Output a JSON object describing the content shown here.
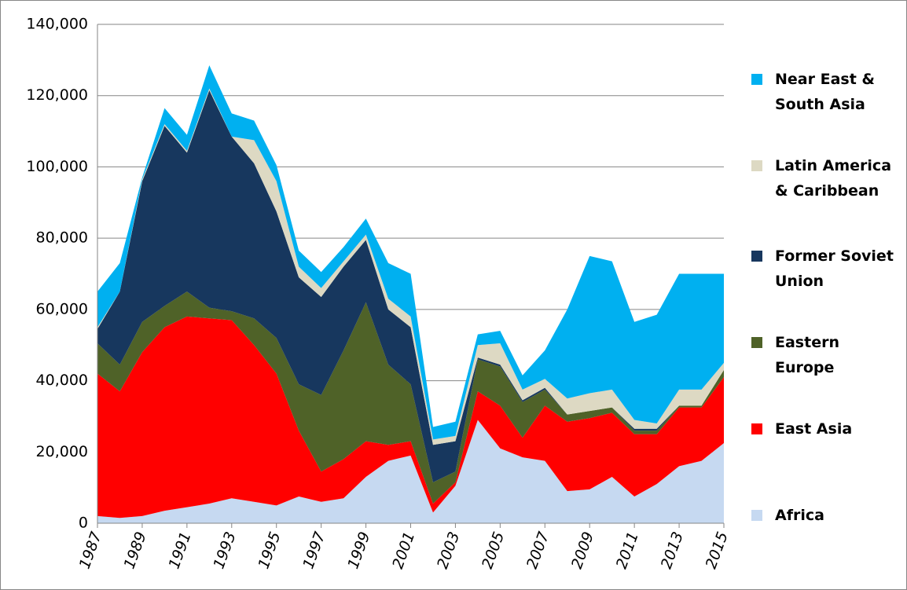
{
  "chart_data": {
    "type": "stacked-area",
    "x": [
      1987,
      1988,
      1989,
      1990,
      1991,
      1992,
      1993,
      1994,
      1995,
      1996,
      1997,
      1998,
      1999,
      2000,
      2001,
      2002,
      2003,
      2004,
      2005,
      2006,
      2007,
      2008,
      2009,
      2010,
      2011,
      2012,
      2013,
      2014,
      2015
    ],
    "xlim": [
      1987,
      2015
    ],
    "xticks": [
      1987,
      1989,
      1991,
      1993,
      1995,
      1997,
      1999,
      2001,
      2003,
      2005,
      2007,
      2009,
      2011,
      2013,
      2015
    ],
    "ylim": [
      0,
      140000
    ],
    "yticks": [
      0,
      {
        "value": 20000,
        "label": "20,000"
      },
      {
        "value": 40000,
        "label": "40,000"
      },
      {
        "value": 60000,
        "label": "60,000"
      },
      {
        "value": 80000,
        "label": "80,000"
      },
      {
        "value": 100000,
        "label": "100,000"
      },
      {
        "value": 120000,
        "label": "120,000"
      },
      {
        "value": 140000,
        "label": "140,000"
      }
    ],
    "grid": true,
    "legend": "right",
    "series": [
      {
        "name": "Africa",
        "color": "#c6d9f1",
        "values": [
          2000,
          1500,
          2000,
          3500,
          4500,
          5500,
          7000,
          6000,
          5000,
          7500,
          6000,
          7000,
          13000,
          17500,
          19000,
          3000,
          10500,
          29000,
          21000,
          18500,
          17500,
          9000,
          9500,
          13000,
          7500,
          11000,
          16000,
          17500,
          22500
        ]
      },
      {
        "name": "East Asia",
        "color": "#ff0000",
        "values": [
          40000,
          35500,
          46000,
          51500,
          53500,
          52000,
          50000,
          44000,
          37000,
          18500,
          8500,
          11000,
          10000,
          4500,
          4000,
          2500,
          1000,
          8000,
          12000,
          5500,
          15500,
          19500,
          20000,
          18000,
          17500,
          14000,
          16500,
          15000,
          18500
        ]
      },
      {
        "name": "Eastern Europe",
        "color": "#4f6228",
        "values": [
          8500,
          7500,
          8500,
          6000,
          7000,
          3000,
          2500,
          7500,
          10000,
          13000,
          21500,
          30500,
          39000,
          22500,
          16000,
          6000,
          3000,
          9000,
          11000,
          10000,
          4500,
          2000,
          2000,
          1500,
          1000,
          1000,
          500,
          500,
          2000
        ]
      },
      {
        "name": "Former Soviet Union",
        "color": "#17375e",
        "values": [
          4000,
          20500,
          39500,
          50500,
          39000,
          61000,
          49000,
          43500,
          35500,
          30000,
          27500,
          23500,
          17500,
          15500,
          16000,
          10500,
          8500,
          500,
          500,
          500,
          500,
          0,
          0,
          0,
          500,
          500,
          0,
          0,
          0
        ]
      },
      {
        "name": "Latin America & Caribbean",
        "color": "#ddd9c3",
        "values": [
          500,
          0,
          500,
          500,
          500,
          500,
          0,
          6500,
          8500,
          3000,
          2500,
          1500,
          1500,
          3000,
          3000,
          1500,
          1500,
          3500,
          6000,
          3000,
          2500,
          4500,
          5000,
          5000,
          2500,
          1500,
          4500,
          4500,
          2000
        ]
      },
      {
        "name": "Near East & South Asia",
        "color": "#00b0f0",
        "values": [
          10000,
          8000,
          500,
          4500,
          4500,
          6500,
          6500,
          5500,
          4500,
          4500,
          4500,
          4000,
          4500,
          10000,
          12000,
          3500,
          4000,
          3000,
          3500,
          4000,
          8000,
          25000,
          38500,
          36000,
          27500,
          30500,
          32500,
          32500,
          25000
        ]
      }
    ]
  }
}
